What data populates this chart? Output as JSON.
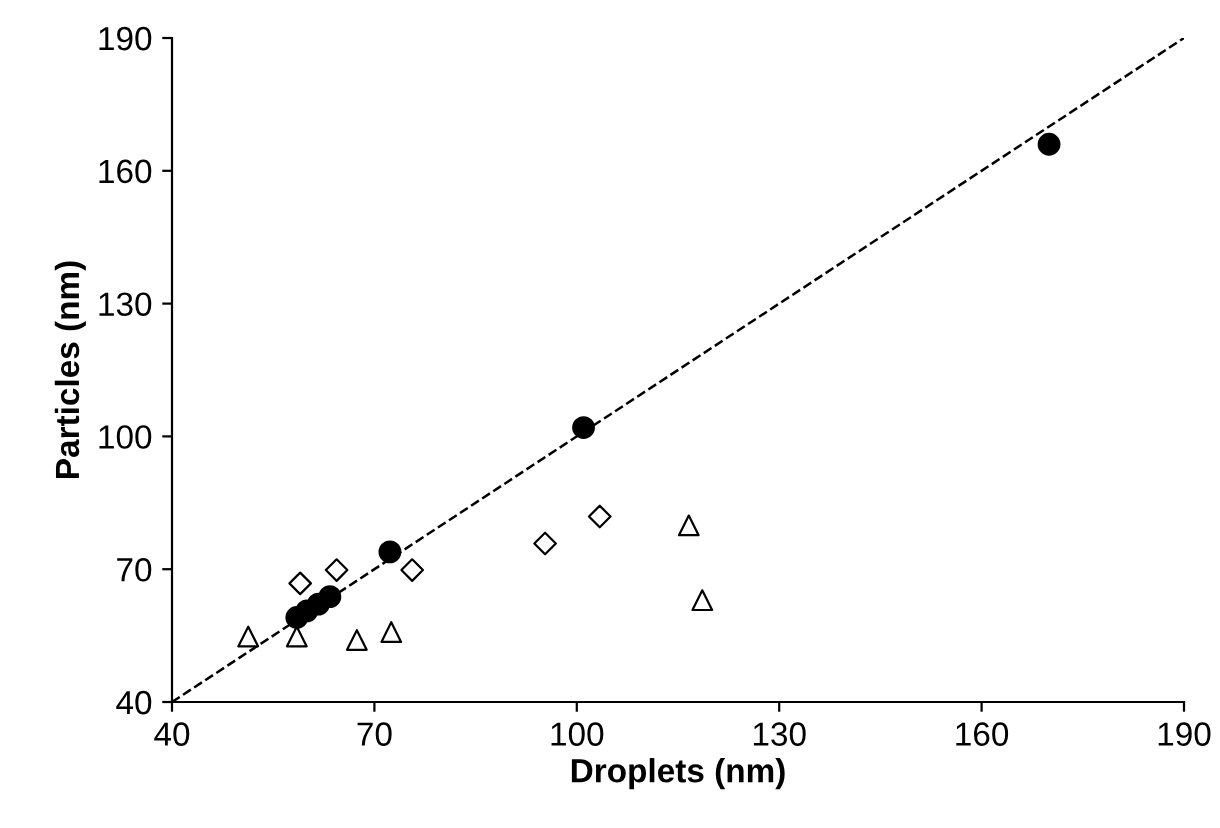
{
  "chart_data": {
    "type": "scatter",
    "xlabel": "Droplets (nm)",
    "ylabel": "Particles (nm)",
    "xlim": [
      40,
      190
    ],
    "ylim": [
      40,
      190
    ],
    "xticks": [
      40,
      70,
      100,
      130,
      160,
      190
    ],
    "yticks": [
      40,
      70,
      100,
      130,
      160,
      190
    ],
    "grid": false,
    "legend": false,
    "series": [
      {
        "marker": "circle",
        "color": "#000000",
        "x": [
          58.5,
          60.0,
          61.7,
          63.4,
          72.3,
          101,
          170
        ],
        "values": [
          59.1,
          60.6,
          62.1,
          63.8,
          73.9,
          102,
          166
        ]
      },
      {
        "marker": "diamond",
        "color": "#000000",
        "x": [
          59.0,
          64.4,
          75.6,
          95.3,
          103.4
        ],
        "values": [
          66.8,
          69.8,
          69.8,
          75.8,
          81.9
        ]
      },
      {
        "marker": "triangle",
        "color": "#000000",
        "x": [
          51.3,
          58.5,
          67.4,
          72.5,
          116.6,
          118.6
        ],
        "values": [
          54.8,
          54.8,
          54.0,
          55.8,
          79.9,
          63.0
        ]
      },
      {
        "type": "line",
        "line_style": "dashed",
        "color": "#000000",
        "x": [
          40,
          190
        ],
        "values": [
          40,
          190
        ]
      }
    ]
  }
}
